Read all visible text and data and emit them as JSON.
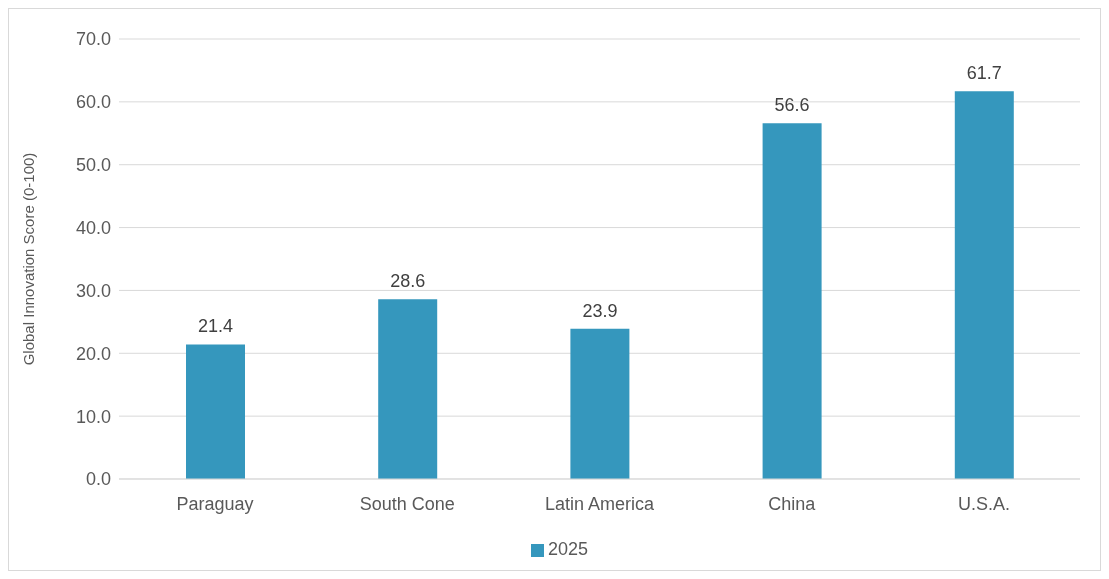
{
  "chart_data": {
    "type": "bar",
    "ylabel": "Global Innovation Score (0-100)",
    "categories": [
      "Paraguay",
      "South Cone",
      "Latin America",
      "China",
      "U.S.A."
    ],
    "series": [
      {
        "name": "2025",
        "color": "#3597bd",
        "values": [
          21.4,
          28.6,
          23.9,
          56.6,
          61.7
        ]
      }
    ],
    "ylim": [
      0,
      70
    ],
    "yticks": [
      {
        "value": 0,
        "label": "0.0"
      },
      {
        "value": 10,
        "label": "10.0"
      },
      {
        "value": 20,
        "label": "20.0"
      },
      {
        "value": 30,
        "label": "30.0"
      },
      {
        "value": 40,
        "label": "40.0"
      },
      {
        "value": 50,
        "label": "50.0"
      },
      {
        "value": 60,
        "label": "60.0"
      },
      {
        "value": 70,
        "label": "70.0"
      }
    ],
    "grid": "y",
    "legend": "bottom",
    "data_labels": true
  }
}
